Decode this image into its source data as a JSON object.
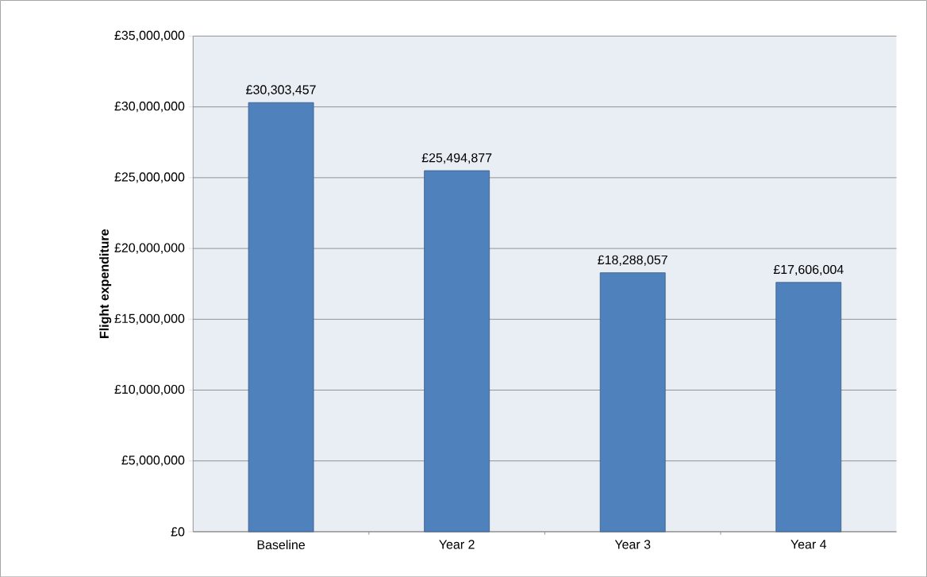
{
  "chart_data": {
    "type": "bar",
    "ylabel": "**Flight expenditure**",
    "categories": [
      "Baseline",
      "Year 2",
      "Year 3",
      "Year 4"
    ],
    "values": [
      30303457,
      25494877,
      18288057,
      17606004
    ],
    "value_labels": [
      "£30,303,457",
      "£25,494,877",
      "£18,288,057",
      "£17,606,004"
    ],
    "color": "#4f81bd",
    "ylim": [
      0,
      35000000
    ],
    "yticks": [
      {
        "value": 0,
        "label": "£0"
      },
      {
        "value": 5000000,
        "label": "£5,000,000"
      },
      {
        "value": 10000000,
        "label": "£10,000,000"
      },
      {
        "value": 15000000,
        "label": "£15,000,000"
      },
      {
        "value": 20000000,
        "label": "£20,000,000"
      },
      {
        "value": 25000000,
        "label": "£25,000,000"
      },
      {
        "value": 30000000,
        "label": "£30,000,000"
      },
      {
        "value": 35000000,
        "label": "£35,000,000"
      }
    ],
    "grid": "y"
  }
}
